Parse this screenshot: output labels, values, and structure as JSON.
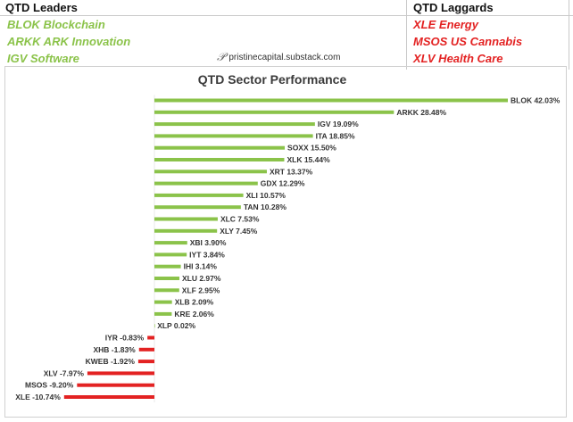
{
  "leaders": {
    "heading": "QTD Leaders",
    "items": [
      "BLOK Blockchain",
      "ARKK ARK Innovation",
      "IGV Software"
    ]
  },
  "laggards": {
    "heading": "QTD Laggards",
    "items": [
      "XLE Energy",
      "MSOS US Cannabis",
      "XLV Health Care"
    ]
  },
  "watermark": "pristinecapital.substack.com",
  "colors": {
    "positive": "#8bc34a",
    "negative": "#e32222",
    "leader_text": "#8bc34a",
    "laggard_text": "#e32222"
  },
  "chart_data": {
    "type": "bar",
    "orientation": "horizontal",
    "title": "QTD Sector Performance",
    "unit": "%",
    "legend": "none",
    "grid": false,
    "categories": [
      "BLOK",
      "ARKK",
      "IGV",
      "ITA",
      "SOXX",
      "XLK",
      "XRT",
      "GDX",
      "XLI",
      "TAN",
      "XLC",
      "XLY",
      "XBI",
      "IYT",
      "IHI",
      "XLU",
      "XLF",
      "XLB",
      "KRE",
      "XLP",
      "IYR",
      "XHB",
      "KWEB",
      "XLV",
      "MSOS",
      "XLE"
    ],
    "values": [
      42.03,
      28.48,
      19.09,
      18.85,
      15.5,
      15.44,
      13.37,
      12.29,
      10.57,
      10.28,
      7.53,
      7.45,
      3.9,
      3.84,
      3.14,
      2.97,
      2.95,
      2.09,
      2.06,
      0.02,
      -0.83,
      -1.83,
      -1.92,
      -7.97,
      -9.2,
      -10.74
    ],
    "labels": [
      "BLOK 42.03%",
      "ARKK 28.48%",
      "IGV 19.09%",
      "ITA 18.85%",
      "SOXX 15.50%",
      "XLK 15.44%",
      "XRT 13.37%",
      "GDX 12.29%",
      "XLI 10.57%",
      "TAN 10.28%",
      "XLC 7.53%",
      "XLY 7.45%",
      "XBI 3.90%",
      "IYT 3.84%",
      "IHI 3.14%",
      "XLU 2.97%",
      "XLF 2.95%",
      "XLB 2.09%",
      "KRE 2.06%",
      "XLP 0.02%",
      "IYR -0.83%",
      "XHB -1.83%",
      "KWEB -1.92%",
      "XLV -7.97%",
      "MSOS -9.20%",
      "XLE -10.74%"
    ],
    "xlim": [
      -10.74,
      42.03
    ]
  }
}
